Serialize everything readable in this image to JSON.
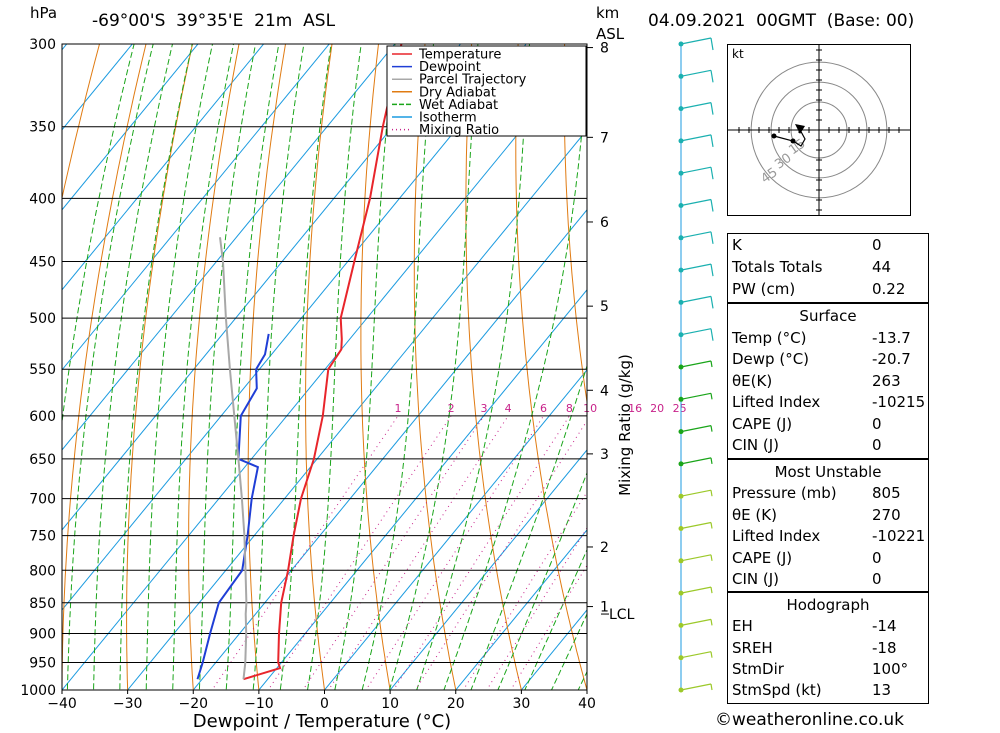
{
  "header": {
    "units_p": "hPa",
    "location": "-69°00'S  39°35'E  21m  ASL",
    "units_km": "km",
    "units_asl": "ASL",
    "datetime": "04.09.2021  00GMT  (Base: 00)"
  },
  "chart_data": {
    "type": "line",
    "title": "",
    "xlabel": "Dewpoint / Temperature (°C)",
    "ylabel": "hPa",
    "y2label": "Mixing Ratio (g/kg)",
    "xlim": [
      -40,
      40
    ],
    "ylim": [
      1000,
      300
    ],
    "x_ticks": [
      "-40",
      "-30",
      "-20",
      "-10",
      "0",
      "10",
      "20",
      "30",
      "40"
    ],
    "p_ticks": [
      "300",
      "350",
      "400",
      "450",
      "500",
      "550",
      "600",
      "650",
      "700",
      "750",
      "800",
      "850",
      "900",
      "950",
      "1000"
    ],
    "km_ticks": [
      {
        "km": "8",
        "p": 302
      },
      {
        "km": "7",
        "p": 357
      },
      {
        "km": "6",
        "p": 418
      },
      {
        "km": "5",
        "p": 489
      },
      {
        "km": "4",
        "p": 572
      },
      {
        "km": "3",
        "p": 644
      },
      {
        "km": "2",
        "p": 766
      },
      {
        "km": "1",
        "p": 856
      }
    ],
    "lcl_label": "LCL",
    "lcl_p": 868,
    "mixing_ratio_labels": [
      "1",
      "2",
      "3",
      "4",
      "6",
      "8",
      "10",
      "16",
      "20",
      "25"
    ],
    "mixing_ratio_values": [
      1,
      2,
      3,
      4,
      6,
      8,
      10,
      16,
      20,
      25
    ],
    "legend": [
      {
        "name": "Temperature",
        "color": "#e8252b",
        "style": "solid"
      },
      {
        "name": "Dewpoint",
        "color": "#1f3ed6",
        "style": "solid"
      },
      {
        "name": "Parcel Trajectory",
        "color": "#a8a8a8",
        "style": "solid"
      },
      {
        "name": "Dry Adiabat",
        "color": "#e07b12",
        "style": "solid"
      },
      {
        "name": "Wet Adiabat",
        "color": "#1aa51a",
        "style": "dashed"
      },
      {
        "name": "Isotherm",
        "color": "#1b9be0",
        "style": "solid"
      },
      {
        "name": "Mixing Ratio",
        "color": "#c8228a",
        "style": "dotted"
      }
    ],
    "series": [
      {
        "key": "temperature",
        "color": "#e8252b",
        "points": [
          [
            980,
            -13.7
          ],
          [
            960,
            -9.5
          ],
          [
            950,
            -10.5
          ],
          [
            900,
            -14.0
          ],
          [
            850,
            -17.5
          ],
          [
            800,
            -20.5
          ],
          [
            750,
            -24.0
          ],
          [
            700,
            -27.5
          ],
          [
            650,
            -30.5
          ],
          [
            600,
            -34.5
          ],
          [
            550,
            -39.5
          ],
          [
            530,
            -40.0
          ],
          [
            520,
            -41.2
          ],
          [
            500,
            -44.0
          ],
          [
            450,
            -49.0
          ],
          [
            400,
            -54.5
          ],
          [
            350,
            -61.5
          ],
          [
            300,
            -69.0
          ]
        ]
      },
      {
        "key": "dewpoint",
        "color": "#1f3ed6",
        "points": [
          [
            980,
            -20.7
          ],
          [
            950,
            -22.0
          ],
          [
            900,
            -24.5
          ],
          [
            850,
            -27.0
          ],
          [
            800,
            -27.5
          ],
          [
            750,
            -31.0
          ],
          [
            700,
            -35.0
          ],
          [
            660,
            -38.0
          ],
          [
            650,
            -42.0
          ],
          [
            600,
            -47.0
          ],
          [
            570,
            -48.0
          ],
          [
            550,
            -50.5
          ],
          [
            535,
            -51.0
          ],
          [
            515,
            -53.0
          ]
        ]
      },
      {
        "key": "parcel",
        "color": "#a8a8a8",
        "points": [
          [
            980,
            -13.7
          ],
          [
            950,
            -15.5
          ],
          [
            900,
            -19.0
          ],
          [
            868,
            -21.5
          ],
          [
            850,
            -22.8
          ],
          [
            800,
            -27.0
          ],
          [
            750,
            -31.5
          ],
          [
            700,
            -36.5
          ],
          [
            650,
            -42.0
          ],
          [
            600,
            -48.0
          ],
          [
            550,
            -54.5
          ],
          [
            500,
            -61.5
          ],
          [
            450,
            -69.0
          ],
          [
            430,
            -72.5
          ]
        ]
      }
    ],
    "wind_barbs_speed_kt": [
      10,
      10,
      10,
      10,
      10,
      10,
      10,
      10,
      10,
      10,
      5,
      5,
      5,
      5,
      5,
      5,
      5,
      5,
      5,
      5,
      5
    ]
  },
  "hodograph": {
    "unit": "kt",
    "rings": [
      "15",
      "30",
      "45"
    ]
  },
  "indices": {
    "k": {
      "label": "K",
      "value": "0"
    },
    "tt": {
      "label": "Totals Totals",
      "value": "44"
    },
    "pw": {
      "label": "PW (cm)",
      "value": "0.22"
    }
  },
  "surface": {
    "title": "Surface",
    "temp": {
      "label": "Temp (°C)",
      "value": "-13.7"
    },
    "dewp": {
      "label": "Dewp (°C)",
      "value": "-20.7"
    },
    "thetae": {
      "label": "θE(K)",
      "value": "263"
    },
    "li": {
      "label": "Lifted Index",
      "value": "-10215"
    },
    "cape": {
      "label": "CAPE (J)",
      "value": "0"
    },
    "cin": {
      "label": "CIN (J)",
      "value": "0"
    }
  },
  "most_unstable": {
    "title": "Most Unstable",
    "pressure": {
      "label": "Pressure (mb)",
      "value": "805"
    },
    "thetae": {
      "label": "θE (K)",
      "value": "270"
    },
    "li": {
      "label": "Lifted Index",
      "value": "-10221"
    },
    "cape": {
      "label": "CAPE (J)",
      "value": "0"
    },
    "cin": {
      "label": "CIN (J)",
      "value": "0"
    }
  },
  "hodo_stats": {
    "title": "Hodograph",
    "eh": {
      "label": "EH",
      "value": "-14"
    },
    "sreh": {
      "label": "SREH",
      "value": "-18"
    },
    "stmdir": {
      "label": "StmDir",
      "value": "100°"
    },
    "stmspd": {
      "label": "StmSpd (kt)",
      "value": "13"
    }
  },
  "footer": {
    "copyright_icon": "copyright-icon",
    "site": "weatheronline.co.uk"
  }
}
